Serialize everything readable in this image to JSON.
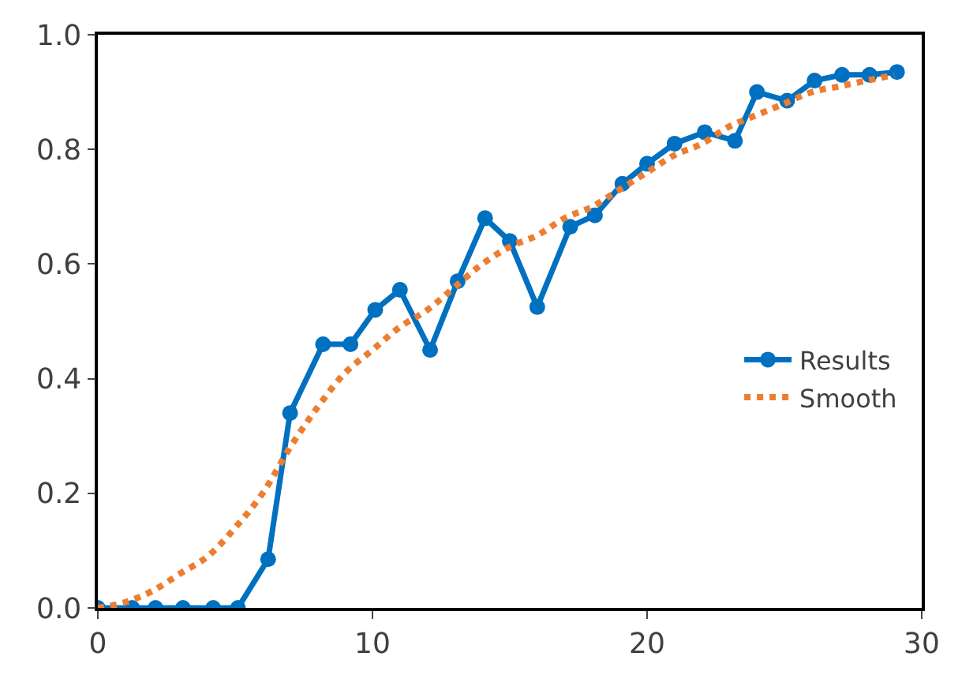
{
  "chart_data": {
    "type": "line",
    "xlim": [
      0,
      30
    ],
    "xticks": [
      0,
      10,
      20,
      30
    ],
    "ylim": [
      0,
      1.0
    ],
    "yticks": [
      {
        "value": 0,
        "label": "0.0"
      },
      {
        "value": 0.2,
        "label": "0.2"
      },
      {
        "value": 0.4,
        "label": "0.4"
      },
      {
        "value": 0.6,
        "label": "0.6"
      },
      {
        "value": 0.8,
        "label": "0.8"
      },
      {
        "value": 1.0,
        "label": "1.0"
      }
    ],
    "legend": "right",
    "series": [
      {
        "name": "Results",
        "color": "#0070c0",
        "marker": "circle",
        "line_style": "solid",
        "x": [
          0,
          1.25,
          2.1,
          3.1,
          4.2,
          5.1,
          6.2,
          7.0,
          8.2,
          9.2,
          10.1,
          11.0,
          12.1,
          13.1,
          14.1,
          15.0,
          16.0,
          17.2,
          18.1,
          19.1,
          20.0,
          21.0,
          22.1,
          23.2,
          24.0,
          25.1,
          26.1,
          27.1,
          28.1,
          29.1
        ],
        "values": [
          0,
          0,
          0,
          0,
          0,
          0,
          0.085,
          0.34,
          0.46,
          0.46,
          0.52,
          0.555,
          0.45,
          0.57,
          0.68,
          0.64,
          0.525,
          0.665,
          0.685,
          0.74,
          0.775,
          0.81,
          0.83,
          0.815,
          0.9,
          0.885,
          0.92,
          0.93,
          0.93,
          0.935
        ]
      },
      {
        "name": "Smooth",
        "color": "#ed7d31",
        "marker": "none",
        "line_style": "dotted",
        "x": [
          0,
          1,
          2,
          3,
          4,
          5,
          6,
          7,
          8,
          9,
          10,
          11,
          12,
          13,
          14,
          15,
          16,
          17,
          18,
          19,
          20,
          21,
          22,
          23,
          24,
          25,
          26,
          27,
          28,
          29
        ],
        "values": [
          0,
          0.01,
          0.03,
          0.06,
          0.09,
          0.14,
          0.2,
          0.28,
          0.35,
          0.41,
          0.45,
          0.49,
          0.52,
          0.56,
          0.6,
          0.63,
          0.65,
          0.68,
          0.7,
          0.73,
          0.76,
          0.79,
          0.81,
          0.84,
          0.86,
          0.88,
          0.9,
          0.91,
          0.92,
          0.93
        ]
      }
    ]
  }
}
